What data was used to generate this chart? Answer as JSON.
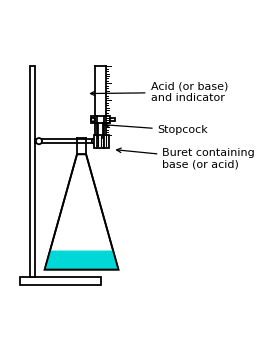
{
  "bg_color": "#ffffff",
  "line_color": "#000000",
  "liquid_color": "#00d8d8",
  "labels": {
    "buret": "Buret containing\nbase (or acid)",
    "stopcock": "Stopcock",
    "flask": "Acid (or base)\nand indicator"
  },
  "label_positions": {
    "buret": [
      0.68,
      0.58
    ],
    "stopcock": [
      0.66,
      0.7
    ],
    "flask": [
      0.63,
      0.86
    ]
  },
  "arrow_ends": {
    "buret": [
      0.47,
      0.62
    ],
    "stopcock": [
      0.42,
      0.725
    ],
    "flask": [
      0.36,
      0.855
    ]
  },
  "figsize": [
    2.66,
    3.56
  ],
  "dpi": 100
}
